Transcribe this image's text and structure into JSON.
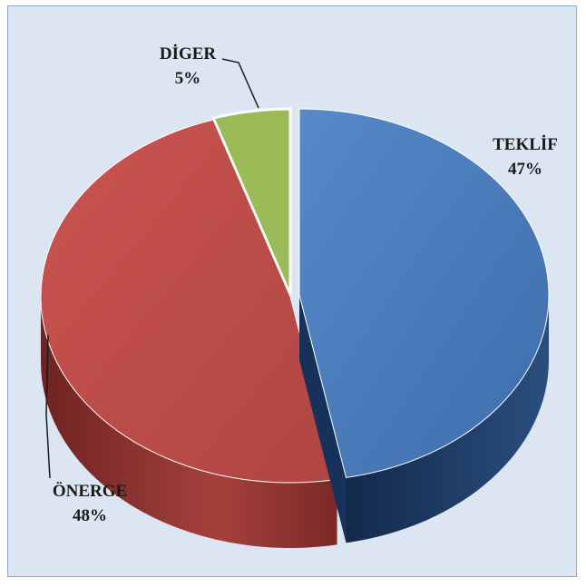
{
  "chart_data": {
    "type": "pie",
    "style": "3d-exploded",
    "title": "",
    "slices": [
      {
        "label": "TEKLİF",
        "value": 47,
        "percent_label": "47%",
        "color": "#4a7bbb",
        "side_color": "#1f3c63"
      },
      {
        "label": "ÖNERGE",
        "value": 48,
        "percent_label": "48%",
        "color": "#c0504d",
        "side_color": "#7b2a28"
      },
      {
        "label": "DİGER",
        "value": 5,
        "percent_label": "5%",
        "color": "#9bbb59",
        "side_color": "#5c7a2c"
      }
    ],
    "background_color": "#dce6f2",
    "border_color": "#8ea9d4"
  }
}
